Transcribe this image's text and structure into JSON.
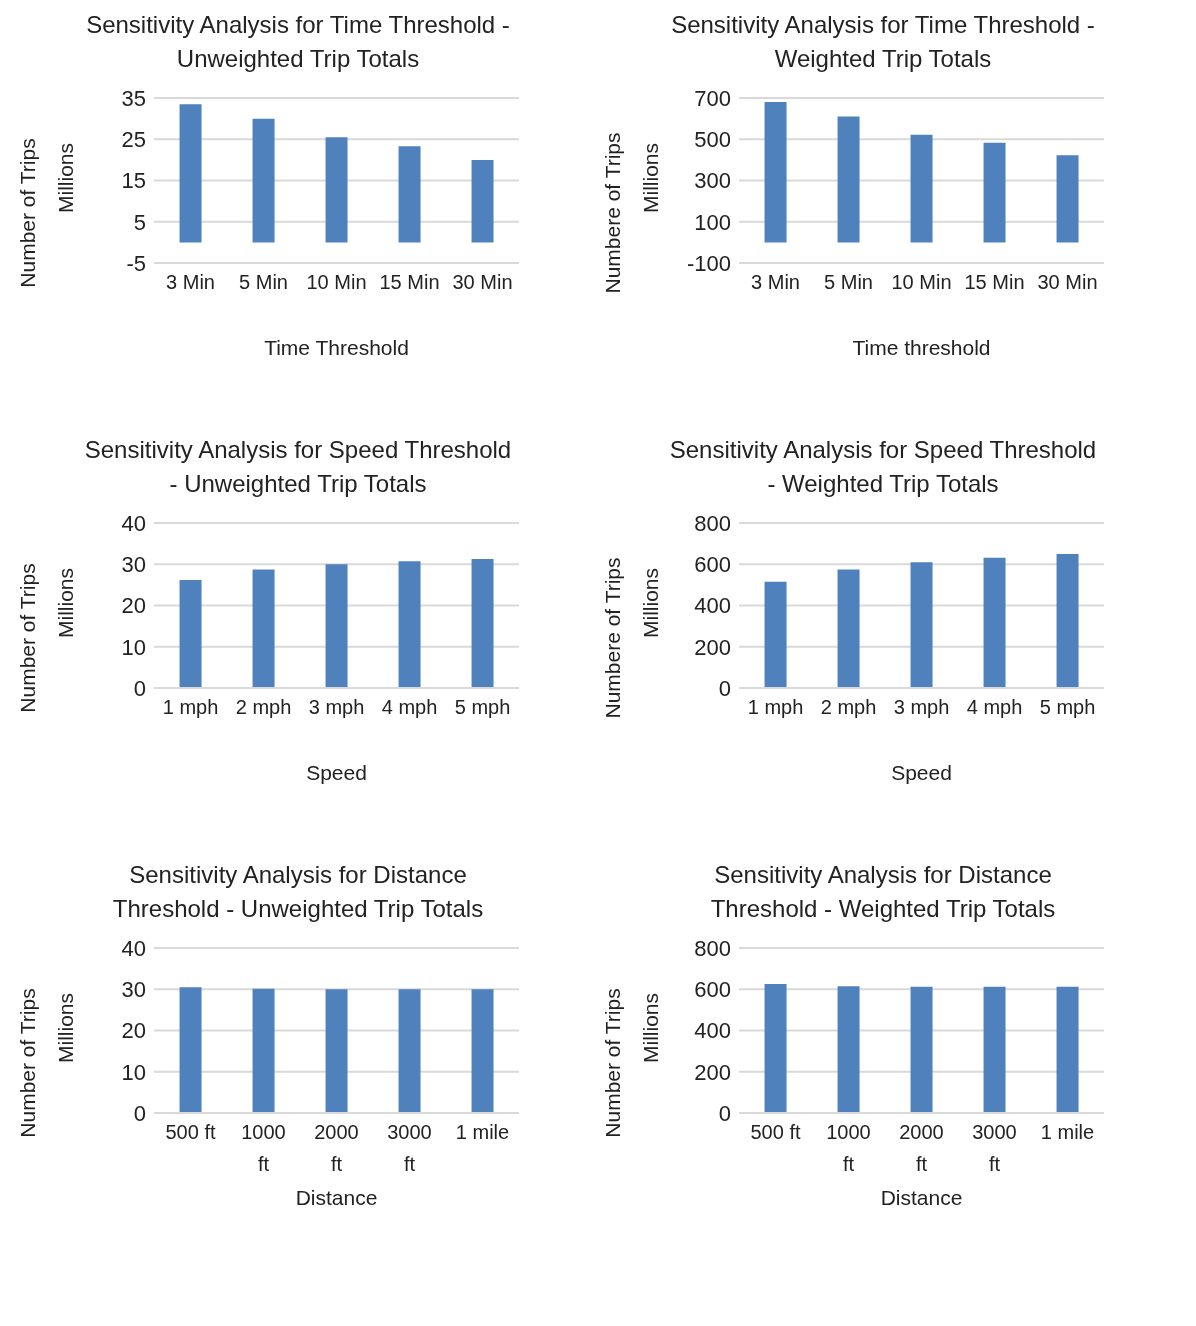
{
  "chart_data": [
    {
      "type": "bar",
      "title": "Sensitivity Analysis for Time Threshold - Unweighted Trip Totals",
      "xlabel": "Time Threshold",
      "ylabel": "Number of Trips",
      "annotations": [
        "Millions"
      ],
      "categories": [
        "3 Min",
        "5 Min",
        "10 Min",
        "15 Min",
        "30 Min"
      ],
      "values": [
        33.5,
        30.0,
        25.5,
        23.3,
        20.0
      ],
      "color": "#4f81bd",
      "ylim": [
        -5,
        35
      ],
      "yticks": [
        -5,
        5,
        15,
        25,
        35
      ],
      "grid": "y",
      "legend": false
    },
    {
      "type": "bar",
      "title": "Sensitivity Analysis for Time Threshold - Weighted Trip Totals",
      "xlabel": "Time threshold",
      "ylabel": "Numbere of Trips",
      "annotations": [
        "Millions"
      ],
      "categories": [
        "3 Min",
        "5 Min",
        "10 Min",
        "15 Min",
        "30 Min"
      ],
      "values": [
        681,
        610,
        522,
        483,
        422
      ],
      "color": "#4f81bd",
      "ylim": [
        -100,
        700
      ],
      "yticks": [
        -100,
        100,
        300,
        500,
        700
      ],
      "grid": "y",
      "legend": false
    },
    {
      "type": "bar",
      "title": "Sensitivity Analysis for Speed Threshold - Unweighted Trip Totals",
      "xlabel": "Speed",
      "ylabel": "Number of Trips",
      "annotations": [
        "Millions"
      ],
      "categories": [
        "1 mph",
        "2 mph",
        "3 mph",
        "4 mph",
        "5 mph"
      ],
      "values": [
        26.2,
        28.7,
        30.0,
        30.7,
        31.3
      ],
      "color": "#4f81bd",
      "ylim": [
        0,
        40
      ],
      "yticks": [
        0,
        10,
        20,
        30,
        40
      ],
      "grid": "y",
      "legend": false
    },
    {
      "type": "bar",
      "title": "Sensitivity Analysis for Speed Threshold - Weighted Trip Totals",
      "xlabel": "Speed",
      "ylabel": "Numbere of Trips",
      "annotations": [
        "Millions"
      ],
      "categories": [
        "1 mph",
        "2 mph",
        "3 mph",
        "4 mph",
        "5 mph"
      ],
      "values": [
        515,
        575,
        610,
        632,
        650
      ],
      "color": "#4f81bd",
      "ylim": [
        0,
        800
      ],
      "yticks": [
        0,
        200,
        400,
        600,
        800
      ],
      "grid": "y",
      "legend": false
    },
    {
      "type": "bar",
      "title": "Sensitivity Analysis for Distance Threshold - Unweighted Trip Totals",
      "xlabel": "Distance",
      "ylabel": "Number of Trips",
      "annotations": [
        "Millions"
      ],
      "categories": [
        "500 ft",
        "1000 ft",
        "2000 ft",
        "3000 ft",
        "1 mile"
      ],
      "values": [
        30.5,
        30.1,
        30.0,
        30.0,
        30.0
      ],
      "color": "#4f81bd",
      "ylim": [
        0,
        40
      ],
      "yticks": [
        0,
        10,
        20,
        30,
        40
      ],
      "grid": "y",
      "legend": false
    },
    {
      "type": "bar",
      "title": "Sensitivity Analysis for Distance Threshold - Weighted Trip Totals",
      "xlabel": "Distance",
      "ylabel": "Number of Trips",
      "annotations": [
        "Millions"
      ],
      "categories": [
        "500 ft",
        "1000 ft",
        "2000 ft",
        "3000 ft",
        "1 mile"
      ],
      "values": [
        626,
        614,
        612,
        612,
        612
      ],
      "color": "#4f81bd",
      "ylim": [
        0,
        800
      ],
      "yticks": [
        0,
        200,
        400,
        600,
        800
      ],
      "grid": "y",
      "legend": false
    }
  ]
}
